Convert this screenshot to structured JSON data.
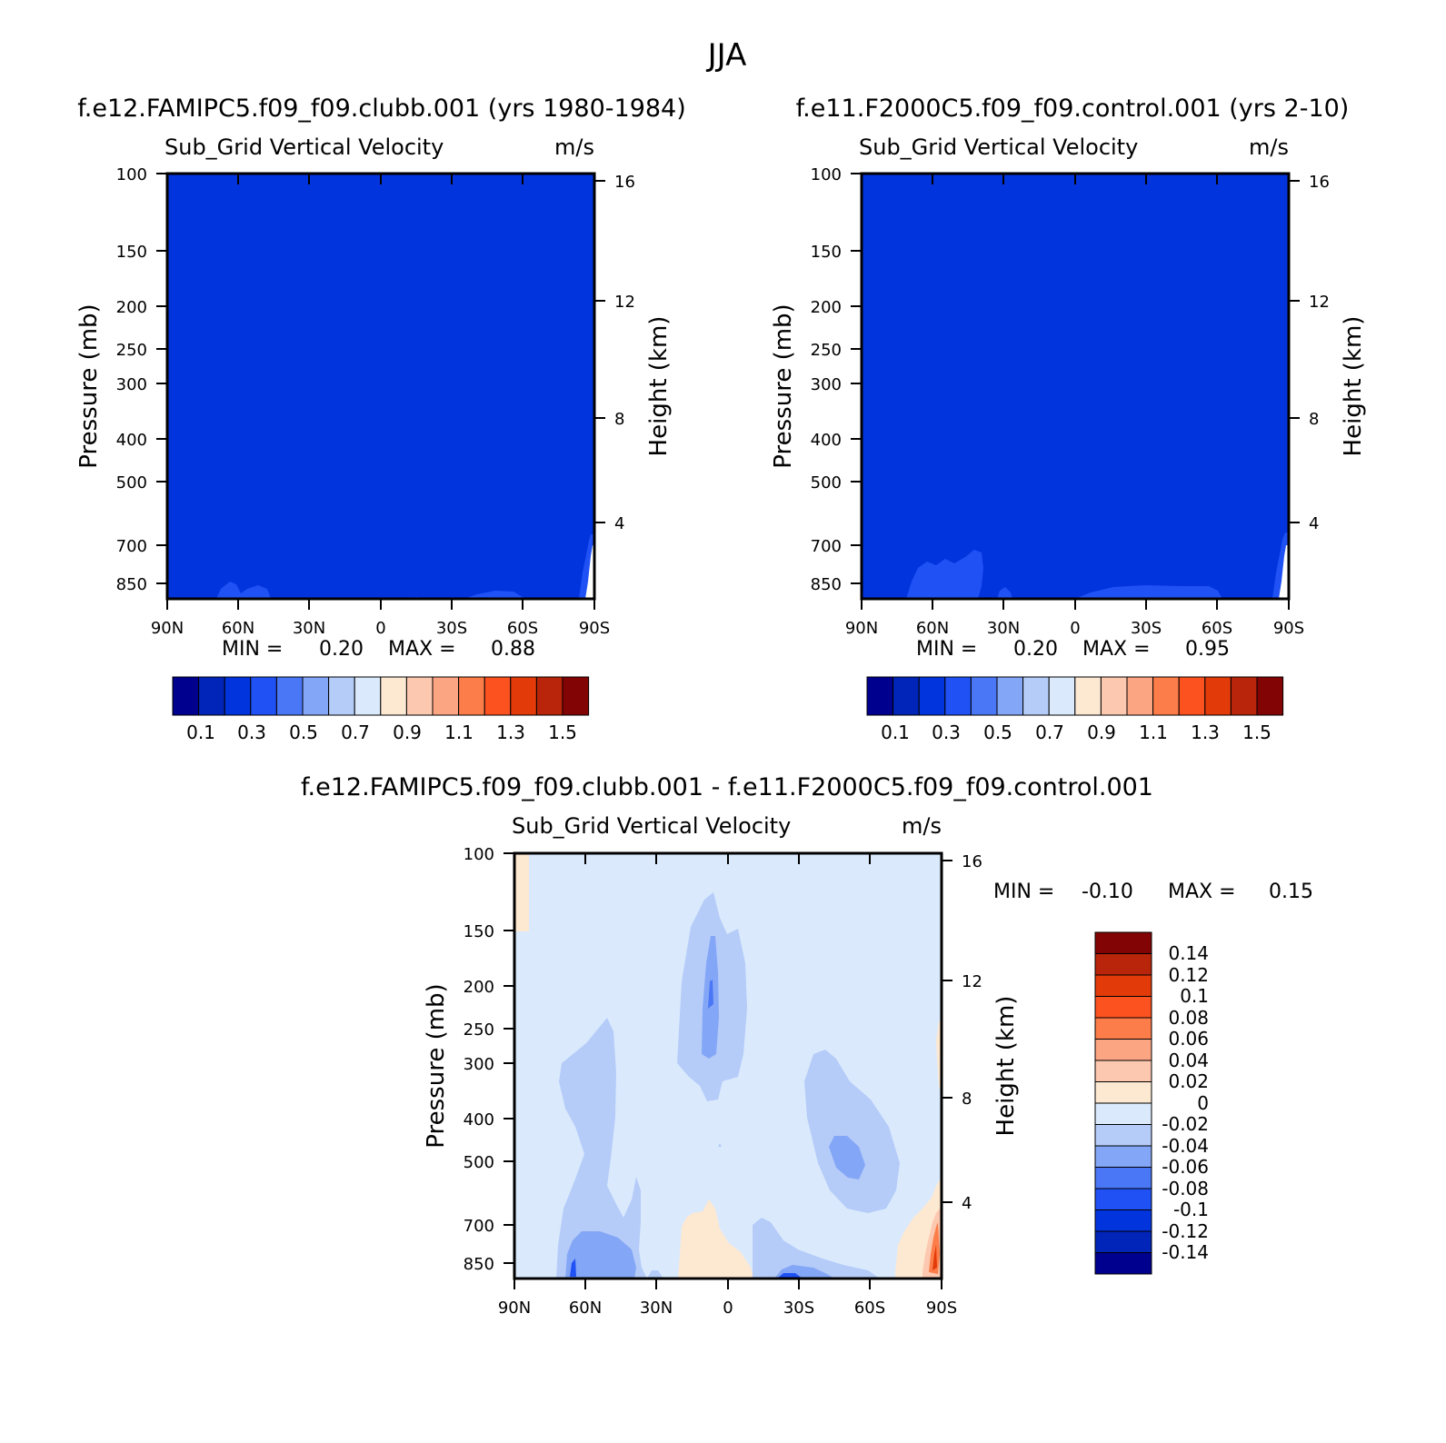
{
  "page_title": "JJA",
  "chart_data": [
    {
      "type": "heatmap",
      "id": "panel-1",
      "title": "f.e12.FAMIPC5.f09_f09.clubb.001 (yrs 1980-1984)",
      "variable": "Sub_Grid Vertical Velocity",
      "units": "m/s",
      "ylabel": "Pressure (mb)",
      "ylabel_right": "Height (km)",
      "y_scale": "log",
      "ylim": [
        1000,
        100
      ],
      "y_ticks": [
        "100",
        "150",
        "200",
        "250",
        "300",
        "400",
        "500",
        "700",
        "850"
      ],
      "y_ticks_right": [
        "16",
        "12",
        "8",
        "4"
      ],
      "x_ticks": [
        "90N",
        "60N",
        "30N",
        "0",
        "30S",
        "60S",
        "90S"
      ],
      "xlim": [
        90,
        -90
      ],
      "min_label": "MIN =",
      "min_value": "0.20",
      "max_label": "MAX =",
      "max_value": "0.88",
      "dominant_range": [
        0.2,
        0.3
      ],
      "colorbar_labels": [
        "0.1",
        "0.3",
        "0.5",
        "0.7",
        "0.9",
        "1.1",
        "1.3",
        "1.5"
      ],
      "colorbar_colors": [
        "#00008f",
        "#0025b8",
        "#0234dd",
        "#1f51f5",
        "#4a77f5",
        "#84a6f6",
        "#b5ccf9",
        "#daeafc",
        "#fde8d2",
        "#fdc8b0",
        "#fca583",
        "#fc7d49",
        "#fc5220",
        "#e33a09",
        "#b8250a",
        "#830404"
      ]
    },
    {
      "type": "heatmap",
      "id": "panel-2",
      "title": "f.e11.F2000C5.f09_f09.control.001 (yrs 2-10)",
      "variable": "Sub_Grid Vertical Velocity",
      "units": "m/s",
      "ylabel": "Pressure (mb)",
      "ylabel_right": "Height (km)",
      "y_scale": "log",
      "ylim": [
        1000,
        100
      ],
      "y_ticks": [
        "100",
        "150",
        "200",
        "250",
        "300",
        "400",
        "500",
        "700",
        "850"
      ],
      "y_ticks_right": [
        "16",
        "12",
        "8",
        "4"
      ],
      "x_ticks": [
        "90N",
        "60N",
        "30N",
        "0",
        "30S",
        "60S",
        "90S"
      ],
      "xlim": [
        90,
        -90
      ],
      "min_label": "MIN =",
      "min_value": "0.20",
      "max_label": "MAX =",
      "max_value": "0.95",
      "dominant_range": [
        0.2,
        0.3
      ],
      "colorbar_labels": [
        "0.1",
        "0.3",
        "0.5",
        "0.7",
        "0.9",
        "1.1",
        "1.3",
        "1.5"
      ],
      "colorbar_colors": [
        "#00008f",
        "#0025b8",
        "#0234dd",
        "#1f51f5",
        "#4a77f5",
        "#84a6f6",
        "#b5ccf9",
        "#daeafc",
        "#fde8d2",
        "#fdc8b0",
        "#fca583",
        "#fc7d49",
        "#fc5220",
        "#e33a09",
        "#b8250a",
        "#830404"
      ]
    },
    {
      "type": "heatmap",
      "id": "panel-diff",
      "title": "f.e12.FAMIPC5.f09_f09.clubb.001 - f.e11.F2000C5.f09_f09.control.001",
      "variable": "Sub_Grid Vertical Velocity",
      "units": "m/s",
      "ylabel": "Pressure (mb)",
      "ylabel_right": "Height (km)",
      "y_scale": "log",
      "ylim": [
        1000,
        100
      ],
      "y_ticks": [
        "100",
        "150",
        "200",
        "250",
        "300",
        "400",
        "500",
        "700",
        "850"
      ],
      "y_ticks_right": [
        "16",
        "12",
        "8",
        "4"
      ],
      "x_ticks": [
        "90N",
        "60N",
        "30N",
        "0",
        "30S",
        "60S",
        "90S"
      ],
      "xlim": [
        90,
        -90
      ],
      "min_label": "MIN =",
      "min_value": "-0.10",
      "max_label": "MAX =",
      "max_value": "0.15",
      "dominant_range": [
        -0.02,
        0
      ],
      "colorbar_labels": [
        "0.14",
        "0.12",
        "0.1",
        "0.08",
        "0.06",
        "0.04",
        "0.02",
        "0",
        "-0.02",
        "-0.04",
        "-0.06",
        "-0.08",
        "-0.1",
        "-0.12",
        "-0.14"
      ],
      "colorbar_colors": [
        "#830404",
        "#b8250a",
        "#e33a09",
        "#fc5220",
        "#fc7d49",
        "#fca583",
        "#fdc8b0",
        "#fde8d2",
        "#daeafc",
        "#b5ccf9",
        "#84a6f6",
        "#4a77f5",
        "#1f51f5",
        "#0234dd",
        "#0025b8",
        "#00008f"
      ]
    }
  ]
}
